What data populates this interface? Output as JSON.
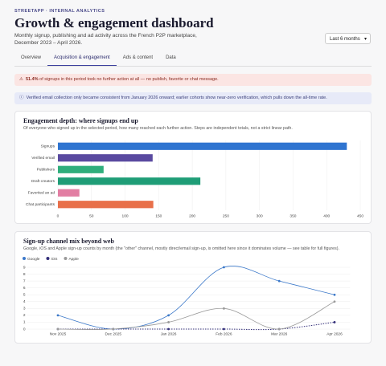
{
  "header": {
    "eyebrow": "STREETAPP · INTERNAL ANALYTICS",
    "title": "Growth & engagement dashboard",
    "subtitle": "Monthly signup, publishing and ad activity across the French P2P marketplace, December 2023 – April 2026."
  },
  "period_select": "Last 6 months",
  "tabs": [
    "Overview",
    "Acquisition & engagement",
    "Ads & content",
    "Data"
  ],
  "active_tab": 1,
  "alerts": [
    {
      "icon": "⚠",
      "emphasis": "51.4%",
      "text": "of signups in this period took no further action at all — no publish, favorite or chat message."
    },
    {
      "icon": "ⓘ",
      "text": "Verified email collection only became consistent from January 2026 onward; earlier cohorts show near-zero verification, which pulls down the all-time rate."
    }
  ],
  "chart_data": [
    {
      "type": "bar",
      "orientation": "horizontal",
      "title": "Engagement depth: where signups end up",
      "subtitle": "Of everyone who signed up in the selected period, how many reached each further action. Steps are independent totals, not a strict linear path.",
      "categories": [
        "Signups",
        "Verified email",
        "Publishers",
        "Draft creators",
        "Favorited an ad",
        "Chat participants"
      ],
      "values": [
        430,
        141,
        68,
        212,
        32,
        142
      ],
      "colors": [
        "#2f74d0",
        "#5a4aa0",
        "#2fae7c",
        "#1f9d77",
        "#e27ea3",
        "#e8704a"
      ],
      "xlim": [
        0,
        450
      ],
      "xticks": [
        0,
        50,
        100,
        150,
        200,
        250,
        300,
        350,
        400,
        450
      ],
      "grid": true
    },
    {
      "type": "line",
      "title": "Sign-up channel mix beyond web",
      "subtitle": "Google, iOS and Apple sign-up counts by month (the \"other\" channel, mostly direct/email sign-up, is omitted here since it dominates volume — see table for full figures).",
      "categories": [
        "Nov 2025",
        "Dec 2025",
        "Jan 2026",
        "Feb 2026",
        "Mar 2026",
        "Apr 2026"
      ],
      "series": [
        {
          "name": "Google",
          "color": "#3b78c9",
          "values": [
            2,
            0,
            2,
            9,
            7,
            5
          ]
        },
        {
          "name": "iOS",
          "color": "#34307a",
          "dashed": true,
          "values": [
            0,
            0,
            0,
            0,
            0,
            1
          ]
        },
        {
          "name": "Apple",
          "color": "#9a9a9a",
          "values": [
            0,
            0,
            1,
            3,
            0,
            4
          ]
        }
      ],
      "ylim": [
        0,
        9
      ],
      "yticks": [
        0,
        1,
        2,
        3,
        4,
        5,
        6,
        7,
        8,
        9
      ],
      "grid": true,
      "legend": "top-left"
    }
  ]
}
